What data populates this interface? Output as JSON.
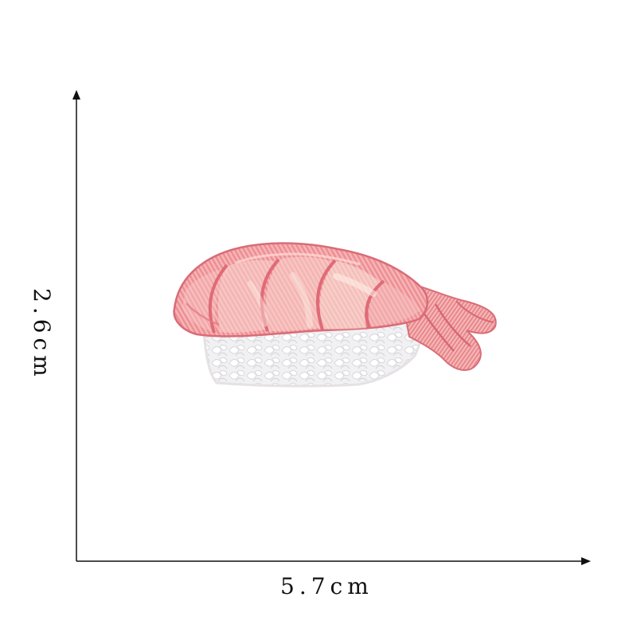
{
  "dimensions": {
    "width_label": "5.7cm",
    "height_label": "2.6cm"
  },
  "product": {
    "icon": "shrimp-sushi-embroidered-patch"
  },
  "colors": {
    "background": "#ffffff",
    "axis": "#111111",
    "shrimp_pink": "#f3a3a5",
    "shrimp_dark": "#e3777e",
    "shrimp_light": "#f8d7cf",
    "rice_white": "#f2f2f4"
  }
}
